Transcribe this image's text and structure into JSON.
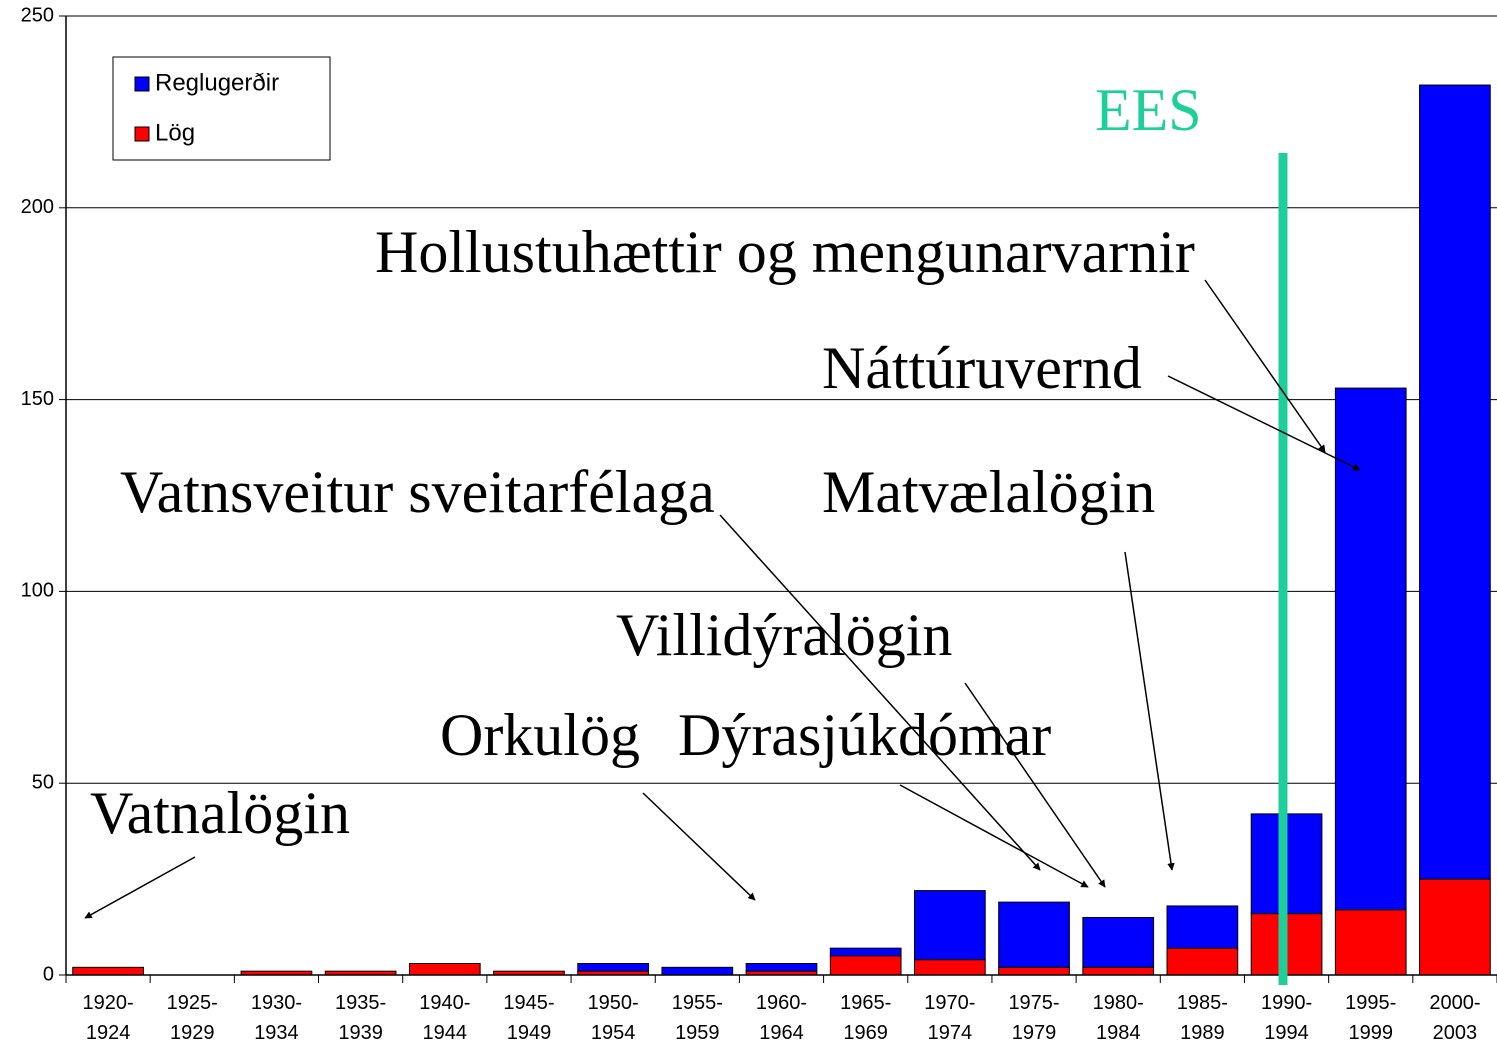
{
  "chart_data": {
    "type": "stacked_bar",
    "categories": [
      "1920-\n1924",
      "1925-\n1929",
      "1930-\n1934",
      "1935-\n1939",
      "1940-\n1944",
      "1945-\n1949",
      "1950-\n1954",
      "1955-\n1959",
      "1960-\n1964",
      "1965-\n1969",
      "1970-\n1974",
      "1975-\n1979",
      "1980-\n1984",
      "1985-\n1989",
      "1990-\n1994",
      "1995-\n1999",
      "2000-\n2003"
    ],
    "series": [
      {
        "name": "Reglugerðir",
        "color": "#0000ff",
        "values": [
          0,
          0,
          0,
          0,
          0,
          0,
          2,
          2,
          2,
          2,
          18,
          17,
          13,
          11,
          26,
          136,
          207
        ]
      },
      {
        "name": "Lög",
        "color": "#ff0000",
        "values": [
          2,
          0,
          1,
          1,
          3,
          1,
          1,
          0,
          1,
          5,
          4,
          2,
          2,
          7,
          16,
          17,
          25
        ]
      }
    ],
    "ylim": [
      0,
      250
    ],
    "yticks": [
      0,
      50,
      100,
      150,
      200,
      250
    ],
    "grid": true,
    "legend": "upper left",
    "annotations": [
      "EES",
      "Hollustuhættir og mengunarvarnir",
      "Náttúruvernd",
      "Vatnsveitur sveitarfélaga",
      "Matvælalögin",
      "Villidýralögin",
      "Orkulög",
      "Dýrasjúkdómar",
      "Vatnalögin"
    ]
  }
}
